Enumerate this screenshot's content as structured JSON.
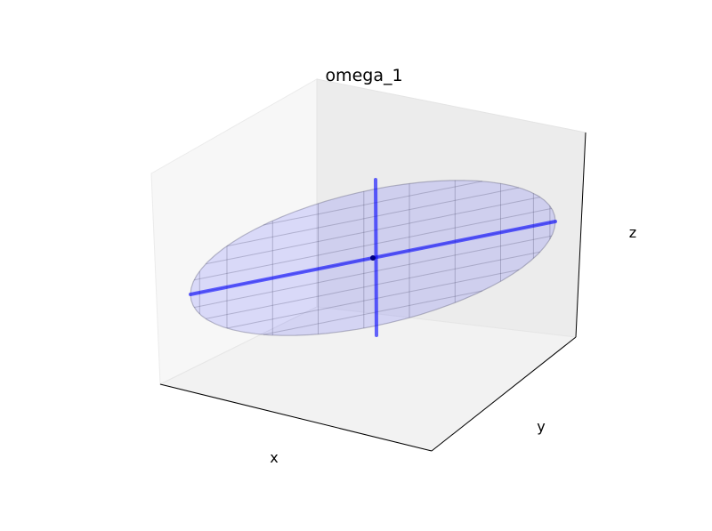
{
  "chart_data": {
    "type": "surface3d",
    "title": "omega_1",
    "xlabel": "x",
    "ylabel": "y",
    "zlabel": "z",
    "grid": false,
    "ticks": "none",
    "surface": "ellipsoid",
    "surface_color": "#0000ff",
    "surface_alpha": 0.12,
    "mesh_color": "#4a4a6a",
    "axis_color": "#0000ff",
    "center_color": "#000080",
    "principal_axes": [
      {
        "name": "major",
        "from": [
          -1,
          0,
          0
        ],
        "to": [
          1,
          0,
          0
        ]
      },
      {
        "name": "minor",
        "from": [
          0,
          0,
          -1
        ],
        "to": [
          0,
          0,
          1
        ]
      }
    ]
  }
}
